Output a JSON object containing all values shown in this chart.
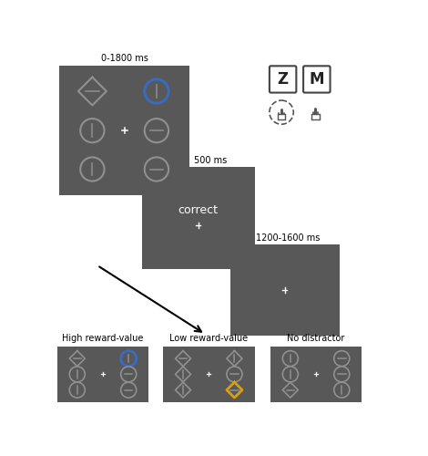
{
  "bg_color": "#585858",
  "shape_color": "#909090",
  "blue_color": "#3a6bbf",
  "yellow_color": "#d4a017",
  "white_color": "#FFFFFF",
  "label1": "0-1800 ms",
  "label2": "500 ms",
  "label3": "1200-1600 ms",
  "correct_text": "correct",
  "title_high": "High reward-value",
  "title_low": "Low reward-value",
  "title_no": "No distractor"
}
